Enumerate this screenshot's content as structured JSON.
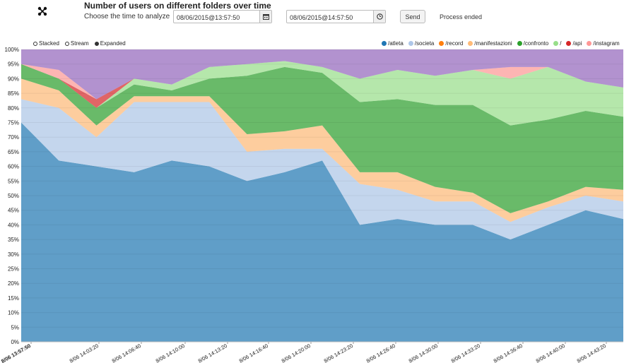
{
  "header": {
    "title": "Number of users on different folders over time",
    "prompt": "Choose the time to analyze",
    "start_value": "08/06/2015@13:57:50",
    "end_value": "08/06/2015@14:57:50",
    "send_label": "Send",
    "status": "Process ended"
  },
  "controls": {
    "stacked": "Stacked",
    "stream": "Stream",
    "expanded": "Expanded",
    "active": "Expanded"
  },
  "legend": [
    {
      "label": "/atleta",
      "color": "#1f77b4"
    },
    {
      "label": "/societa",
      "color": "#aec7e8"
    },
    {
      "label": "/record",
      "color": "#ff7f0e"
    },
    {
      "label": "/manifestazioni",
      "color": "#ffbb78"
    },
    {
      "label": "/confronto",
      "color": "#2ca02c"
    },
    {
      "label": "/",
      "color": "#98df8a"
    },
    {
      "label": "/api",
      "color": "#d62728"
    },
    {
      "label": "/instagram",
      "color": "#ff9896"
    },
    {
      "label": "/",
      "color": "#9467bd"
    }
  ],
  "chart_data": {
    "type": "area",
    "mode": "expanded",
    "title": "",
    "xlabel": "",
    "ylabel": "",
    "ylim": [
      0,
      100
    ],
    "yticks": [
      "0%",
      "5%",
      "10%",
      "15%",
      "20%",
      "25%",
      "30%",
      "35%",
      "40%",
      "45%",
      "50%",
      "55%",
      "60%",
      "65%",
      "70%",
      "75%",
      "80%",
      "85%",
      "90%",
      "95%",
      "100%"
    ],
    "xticks": [
      "8/06 13:57:50",
      "8/06 14:03:20",
      "8/06 14:06:40",
      "8/06 14:10:00",
      "8/06 14:13:20",
      "8/06 14:16:40",
      "8/06 14:20:00",
      "8/06 14:23:20",
      "8/06 14:26:40",
      "8/06 14:30:00",
      "8/06 14:33:20",
      "8/06 14:36:40",
      "8/06 14:40:00",
      "8/06 14:43:20"
    ],
    "grid": true,
    "legend_position": "top-right",
    "x": [
      "13:57:50",
      "14:01:00",
      "14:04:00",
      "14:07:00",
      "14:10:00",
      "14:13:00",
      "14:16:00",
      "14:19:00",
      "14:22:00",
      "14:25:00",
      "14:28:00",
      "14:31:00",
      "14:34:00",
      "14:37:00",
      "14:40:00",
      "14:43:00",
      "14:46:00"
    ],
    "series": [
      {
        "name": "/atleta",
        "color": "#1f77b4",
        "values": [
          75,
          62,
          60,
          58,
          62,
          60,
          55,
          58,
          62,
          40,
          42,
          40,
          40,
          35,
          40,
          45,
          42
        ]
      },
      {
        "name": "/societa",
        "color": "#aec7e8",
        "values": [
          8,
          18,
          10,
          24,
          20,
          22,
          10,
          8,
          4,
          14,
          10,
          8,
          8,
          6,
          6,
          5,
          6
        ]
      },
      {
        "name": "/record",
        "color": "#ff7f0e",
        "values": [
          0,
          0,
          0,
          0,
          0,
          0,
          0,
          0,
          0,
          0,
          0,
          0,
          0,
          0,
          0,
          0,
          0
        ]
      },
      {
        "name": "/manifestazioni",
        "color": "#ffbb78",
        "values": [
          7,
          6,
          4,
          2,
          2,
          2,
          6,
          6,
          8,
          4,
          6,
          5,
          3,
          3,
          2,
          3,
          4
        ]
      },
      {
        "name": "/confronto",
        "color": "#2ca02c",
        "values": [
          5,
          4,
          6,
          4,
          2,
          6,
          20,
          22,
          18,
          24,
          25,
          28,
          30,
          30,
          28,
          26,
          25
        ]
      },
      {
        "name": "/",
        "color": "#98df8a",
        "values": [
          0,
          0,
          0,
          2,
          2,
          4,
          4,
          2,
          2,
          8,
          10,
          10,
          12,
          16,
          18,
          10,
          10
        ]
      },
      {
        "name": "/api",
        "color": "#d62728",
        "values": [
          0,
          0,
          3,
          0,
          0,
          0,
          0,
          0,
          0,
          0,
          0,
          0,
          0,
          0,
          0,
          0,
          0
        ]
      },
      {
        "name": "/instagram",
        "color": "#ff9896",
        "values": [
          0,
          3,
          0,
          0,
          0,
          0,
          0,
          0,
          0,
          0,
          0,
          0,
          0,
          4,
          0,
          0,
          0
        ]
      },
      {
        "name": "/",
        "color": "#9467bd",
        "values": [
          5,
          7,
          17,
          10,
          12,
          6,
          5,
          4,
          6,
          10,
          7,
          9,
          7,
          6,
          6,
          11,
          13
        ]
      }
    ]
  }
}
